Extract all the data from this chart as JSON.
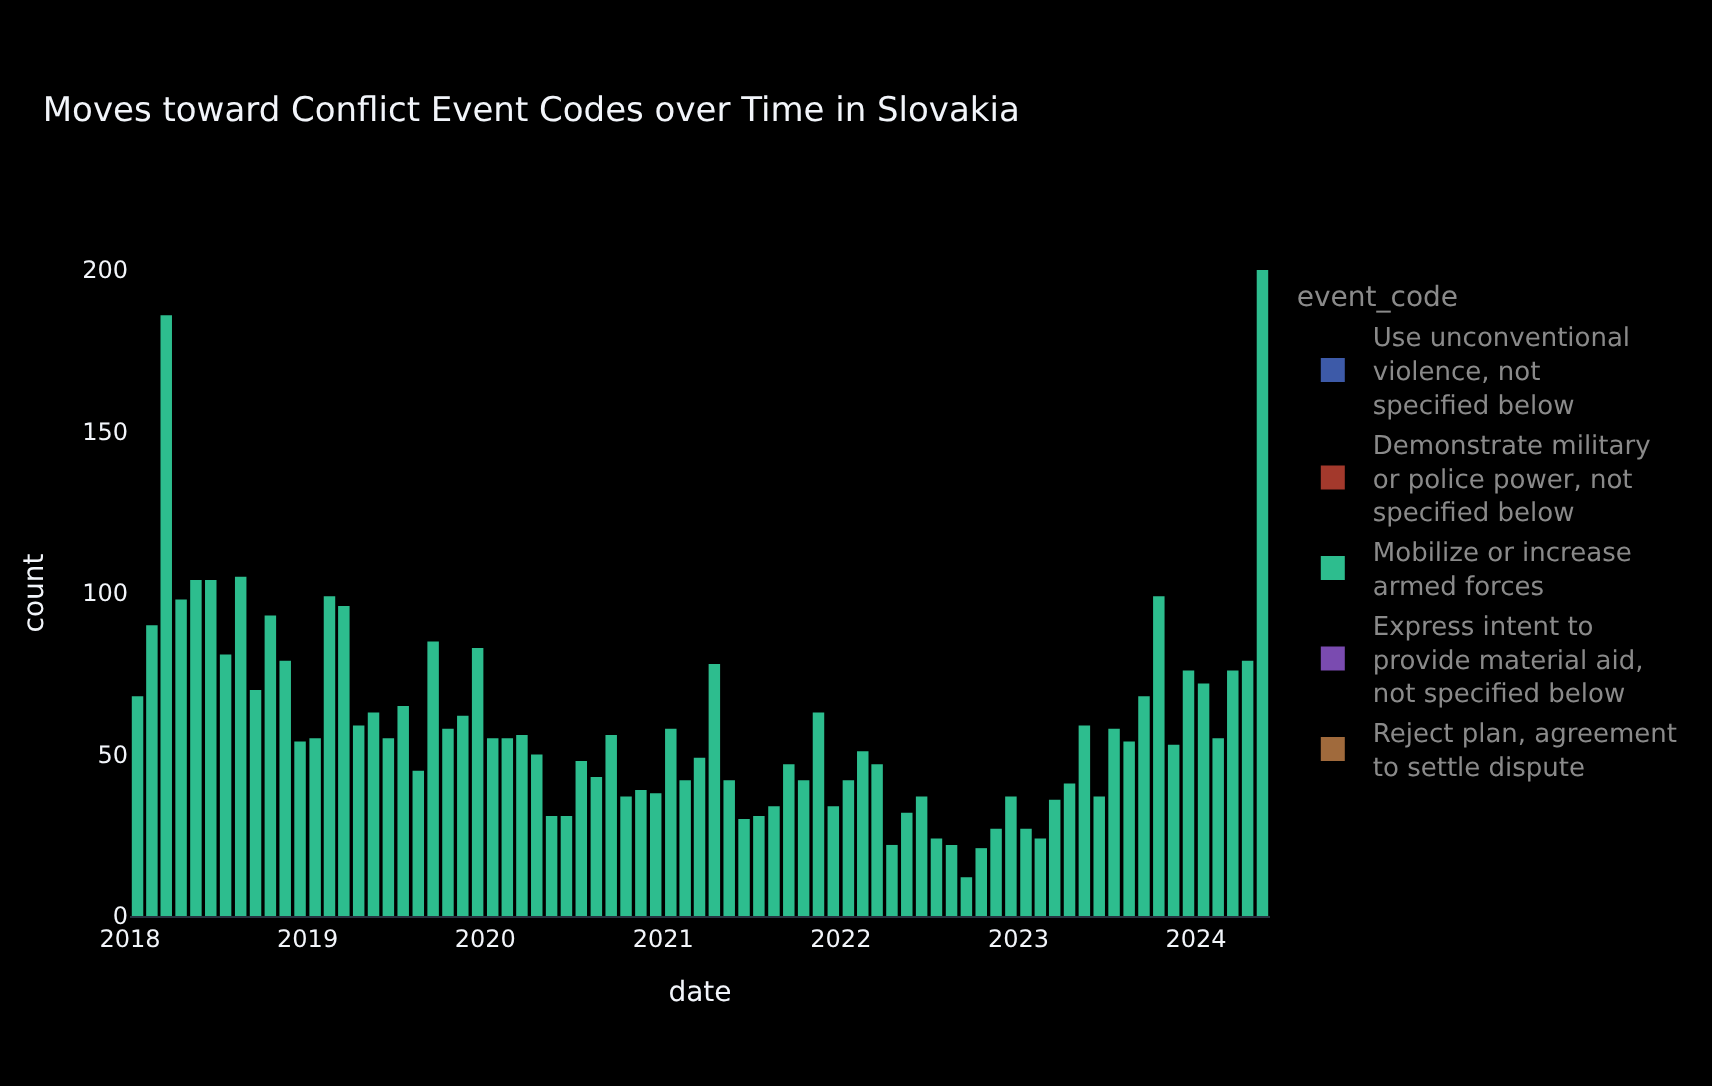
{
  "chart_data": {
    "type": "bar",
    "title": "Moves toward Conflict Event Codes over Time in Slovakia",
    "xlabel": "date",
    "ylabel": "count",
    "legend_title": "event_code",
    "legend": "right",
    "grid": false,
    "x": [
      "2018-01",
      "2018-02",
      "2018-03",
      "2018-04",
      "2018-05",
      "2018-06",
      "2018-07",
      "2018-08",
      "2018-09",
      "2018-10",
      "2018-11",
      "2018-12",
      "2019-01",
      "2019-02",
      "2019-03",
      "2019-04",
      "2019-05",
      "2019-06",
      "2019-07",
      "2019-08",
      "2019-09",
      "2019-10",
      "2019-11",
      "2019-12",
      "2020-01",
      "2020-02",
      "2020-03",
      "2020-04",
      "2020-05",
      "2020-06",
      "2020-07",
      "2020-08",
      "2020-09",
      "2020-10",
      "2020-11",
      "2020-12",
      "2021-01",
      "2021-02",
      "2021-03",
      "2021-04",
      "2021-05",
      "2021-06",
      "2021-07",
      "2021-08",
      "2021-09",
      "2021-10",
      "2021-11",
      "2021-12",
      "2022-01",
      "2022-02",
      "2022-03",
      "2022-04",
      "2022-05",
      "2022-06",
      "2022-07",
      "2022-08",
      "2022-09",
      "2022-10",
      "2022-11",
      "2022-12",
      "2023-01",
      "2023-02",
      "2023-03",
      "2023-04",
      "2023-05",
      "2023-06",
      "2023-07",
      "2023-08",
      "2023-09",
      "2023-10",
      "2023-11",
      "2023-12",
      "2024-01",
      "2024-02",
      "2024-03",
      "2024-04",
      "2024-05"
    ],
    "xlim": [
      "2018-01-01",
      "2024-06-01"
    ],
    "xticks": [
      "2018",
      "2019",
      "2020",
      "2021",
      "2022",
      "2023",
      "2024"
    ],
    "ylim": [
      0,
      200
    ],
    "yticks": [
      0,
      50,
      100,
      150,
      200
    ],
    "series": [
      {
        "name": "Use unconventional violence, not specified below",
        "color": "#3d5aa8",
        "values": [
          null,
          null,
          null,
          null,
          null,
          null,
          null,
          null,
          null,
          null,
          null,
          null,
          null,
          null,
          null,
          null,
          null,
          null,
          null,
          null,
          null,
          null,
          null,
          null,
          null,
          null,
          null,
          null,
          null,
          null,
          null,
          null,
          null,
          null,
          null,
          null,
          null,
          null,
          null,
          null,
          null,
          null,
          null,
          null,
          null,
          null,
          null,
          null,
          null,
          null,
          null,
          null,
          null,
          null,
          null,
          null,
          null,
          null,
          null,
          null,
          null,
          null,
          null,
          null,
          null,
          null,
          null,
          null,
          null,
          null,
          null,
          null,
          null,
          null,
          null,
          null,
          null
        ]
      },
      {
        "name": "Demonstrate military or police power, not specified below",
        "color": "#a3392c",
        "values": [
          null,
          null,
          null,
          null,
          null,
          null,
          null,
          null,
          null,
          null,
          null,
          null,
          null,
          null,
          null,
          null,
          null,
          null,
          null,
          null,
          null,
          null,
          null,
          null,
          null,
          null,
          null,
          null,
          null,
          null,
          null,
          null,
          null,
          null,
          null,
          null,
          null,
          null,
          null,
          null,
          null,
          null,
          null,
          null,
          null,
          null,
          null,
          null,
          null,
          null,
          null,
          null,
          null,
          null,
          null,
          null,
          null,
          null,
          null,
          null,
          null,
          null,
          null,
          null,
          null,
          null,
          null,
          null,
          null,
          null,
          null,
          null,
          null,
          null,
          null,
          null,
          null
        ]
      },
      {
        "name": "Mobilize or increase armed forces",
        "color": "#2dbd8e",
        "values": [
          68,
          90,
          186,
          98,
          104,
          104,
          81,
          105,
          70,
          93,
          79,
          54,
          55,
          99,
          96,
          59,
          63,
          55,
          65,
          45,
          85,
          58,
          62,
          83,
          55,
          55,
          56,
          50,
          31,
          31,
          48,
          43,
          56,
          37,
          39,
          38,
          58,
          42,
          49,
          78,
          42,
          30,
          31,
          34,
          47,
          42,
          63,
          34,
          42,
          51,
          47,
          22,
          32,
          37,
          24,
          22,
          12,
          21,
          27,
          37,
          27,
          24,
          36,
          41,
          59,
          37,
          58,
          54,
          68,
          99,
          53,
          76,
          72,
          55,
          76,
          79,
          200
        ]
      },
      {
        "name": "Express intent to provide material aid, not specified below",
        "color": "#7a4bb0",
        "values": [
          null,
          null,
          null,
          null,
          null,
          null,
          null,
          null,
          null,
          null,
          null,
          null,
          null,
          null,
          null,
          null,
          null,
          null,
          null,
          null,
          null,
          null,
          null,
          null,
          null,
          null,
          null,
          null,
          null,
          null,
          null,
          null,
          null,
          null,
          null,
          null,
          null,
          null,
          null,
          null,
          null,
          null,
          null,
          null,
          null,
          null,
          null,
          null,
          null,
          null,
          null,
          null,
          null,
          null,
          null,
          null,
          null,
          null,
          null,
          null,
          null,
          null,
          null,
          null,
          null,
          null,
          null,
          null,
          null,
          null,
          null,
          null,
          null,
          null,
          null,
          null,
          null
        ]
      },
      {
        "name": "Reject plan, agreement to settle dispute",
        "color": "#a06a3c",
        "values": [
          null,
          null,
          null,
          null,
          null,
          null,
          null,
          null,
          null,
          null,
          null,
          null,
          null,
          null,
          null,
          null,
          null,
          null,
          null,
          null,
          null,
          null,
          null,
          null,
          null,
          null,
          null,
          null,
          null,
          null,
          null,
          null,
          null,
          null,
          null,
          null,
          null,
          null,
          null,
          null,
          null,
          null,
          null,
          null,
          null,
          null,
          null,
          null,
          null,
          null,
          null,
          null,
          null,
          null,
          null,
          null,
          null,
          null,
          null,
          null,
          null,
          null,
          null,
          null,
          null,
          null,
          null,
          null,
          null,
          null,
          null,
          null,
          null,
          null,
          null,
          null,
          null
        ]
      }
    ]
  }
}
